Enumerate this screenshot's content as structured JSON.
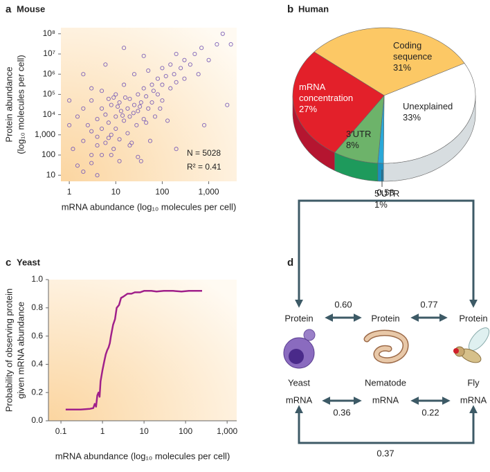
{
  "chart_data": [
    {
      "type": "scatter",
      "panel": "a",
      "title": "Mouse",
      "xlabel": "mRNA abundance (log₁₀ molecules per cell)",
      "ylabel": [
        "Protein abundance",
        "(log₁₀ molecules per cell)"
      ],
      "annotations": [
        "N = 5028",
        "R² = 0.41"
      ],
      "log_x": true,
      "log_y": true,
      "color": "#7e62b8",
      "xlim": [
        0.66,
        4000
      ],
      "ylim": [
        5,
        200000000
      ],
      "xticks": [
        1,
        10,
        100,
        {
          "value": 1000,
          "label": "1,000"
        }
      ],
      "yticks": [
        10,
        100,
        {
          "value": 1000,
          "label": "1,000"
        },
        {
          "value": 10000,
          "label": "10⁴"
        },
        {
          "value": 100000,
          "label": "10⁵"
        },
        {
          "value": 1000000,
          "label": "10⁶"
        },
        {
          "value": 10000000,
          "label": "10⁷"
        },
        {
          "value": 100000000,
          "label": "10⁸"
        }
      ],
      "x": [
        1,
        1.2,
        1.5,
        2,
        2,
        2.5,
        3,
        3,
        3,
        4,
        4,
        4,
        5,
        5,
        5,
        6,
        6,
        7,
        7,
        8,
        8,
        9,
        10,
        10,
        10,
        12,
        12,
        13,
        15,
        15,
        18,
        18,
        20,
        20,
        22,
        25,
        25,
        28,
        30,
        30,
        35,
        35,
        40,
        40,
        45,
        50,
        50,
        55,
        60,
        60,
        70,
        80,
        80,
        90,
        100,
        100,
        100,
        120,
        130,
        150,
        150,
        180,
        200,
        200,
        250,
        300,
        300,
        400,
        500,
        600,
        700,
        1000,
        1500,
        2000,
        3000,
        2500,
        1.5,
        2,
        3,
        4,
        8,
        12,
        1,
        2,
        6,
        15,
        40,
        200,
        800,
        30,
        9,
        11,
        14,
        16,
        24,
        33,
        45,
        65,
        7,
        5,
        20,
        3
      ],
      "values": [
        3000,
        200,
        8000,
        500,
        20000,
        3000,
        100,
        1500,
        50000,
        800,
        6000,
        300,
        20000,
        2000,
        150000,
        400,
        10000,
        4000,
        60000,
        1000,
        30000,
        200,
        8000,
        100000,
        2000,
        40000,
        600,
        15000,
        5000,
        300000,
        20000,
        1200,
        60000,
        8000,
        400,
        30000,
        1000000,
        3000,
        100000,
        15000,
        50,
        40000,
        200000,
        6000,
        80000,
        20000,
        1500000,
        500,
        300000,
        40000,
        8000,
        600000,
        100000,
        20000,
        2000000,
        300000,
        50000,
        800000,
        5000,
        200000,
        3000000,
        1000000,
        400000,
        10000000,
        2000000,
        600000,
        5000000,
        3000000,
        10000000,
        1000000,
        20000000,
        5000000,
        30000000,
        100000000,
        30000000,
        30000,
        30,
        15,
        40,
        10,
        100,
        50,
        50000,
        1000000,
        3000000,
        20000000,
        8000000,
        200,
        3000,
        80,
        70000,
        25000,
        9000,
        70000,
        12000,
        25000,
        4000,
        150000,
        700,
        100,
        300,
        200000
      ]
    },
    {
      "type": "pie",
      "panel": "b",
      "title": "Human",
      "categories": [
        "Coding sequence",
        "Unexplained",
        "5′UTR",
        "3′UTR",
        "mRNA concentration"
      ],
      "values": [
        31,
        33,
        1,
        8,
        27
      ],
      "value_labels": [
        "31%",
        "33%",
        "1%",
        "8%",
        "27%"
      ],
      "colors": [
        "#fcc865",
        "#ffffff",
        "#29a8d8",
        "#6db36a",
        "#e3202a"
      ],
      "side_colors": [
        "#e0a840",
        "#d7dde0",
        "#1a8fc0",
        "#1e9a5c",
        "#b51530"
      ]
    },
    {
      "type": "line",
      "panel": "c",
      "title": "Yeast",
      "xlabel": "mRNA abundance (log₁₀ molecules per cell)",
      "ylabel": [
        "Probability of observing protein",
        "given mRNA abundance"
      ],
      "log_x": true,
      "color": "#a0208a",
      "xlim": [
        0.05,
        1700
      ],
      "ylim": [
        0,
        1
      ],
      "xticks": [
        0.1,
        1,
        10,
        100,
        {
          "value": 1000,
          "label": "1,000"
        }
      ],
      "yticks": [
        {
          "value": 0,
          "label": "0.0"
        },
        0.2,
        0.4,
        0.6,
        0.8,
        {
          "value": 1,
          "label": "1.0"
        }
      ],
      "x": [
        0.13,
        0.3,
        0.5,
        0.6,
        0.65,
        0.7,
        0.75,
        0.8,
        0.85,
        0.9,
        1.0,
        1.1,
        1.2,
        1.3,
        1.4,
        1.5,
        1.6,
        1.8,
        2.0,
        2.2,
        2.5,
        2.8,
        3.2,
        4,
        5,
        6,
        8,
        10,
        15,
        20,
        30,
        50,
        80,
        120,
        250
      ],
      "values": [
        0.08,
        0.08,
        0.085,
        0.09,
        0.12,
        0.1,
        0.18,
        0.2,
        0.17,
        0.28,
        0.36,
        0.42,
        0.47,
        0.5,
        0.52,
        0.55,
        0.6,
        0.68,
        0.72,
        0.8,
        0.82,
        0.87,
        0.88,
        0.9,
        0.9,
        0.91,
        0.91,
        0.92,
        0.92,
        0.915,
        0.92,
        0.92,
        0.915,
        0.92,
        0.92
      ]
    }
  ],
  "diagram": {
    "panel": "d",
    "top_loop": "0.58",
    "proteins": [
      "Protein",
      "Protein",
      "Protein"
    ],
    "protein_links": [
      "0.60",
      "0.77"
    ],
    "organisms": [
      "Yeast",
      "Nematode",
      "Fly"
    ],
    "mrnas": [
      "mRNA",
      "mRNA",
      "mRNA"
    ],
    "mrna_links": [
      "0.36",
      "0.22"
    ],
    "bottom_loop": "0.37"
  }
}
